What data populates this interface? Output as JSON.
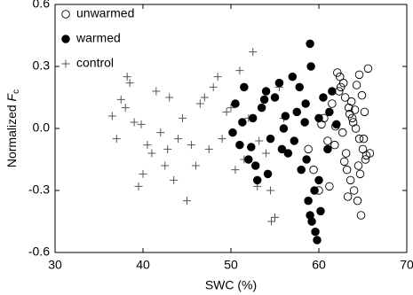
{
  "chart_data": {
    "type": "scatter",
    "xlabel": "SWC (%)",
    "ylabel": [
      "Normalized ",
      "F",
      "c"
    ],
    "xlim": [
      30,
      70
    ],
    "xticks": [
      30,
      40,
      50,
      60,
      70
    ],
    "ylim": [
      -0.6,
      0.6
    ],
    "yticks": [
      -0.6,
      -0.3,
      {
        "value": 0,
        "label": "0.0"
      },
      0.3,
      0.6
    ],
    "legend": "top-left",
    "series": [
      {
        "name": "unwarmed",
        "marker": "open-circle",
        "color": "#000000",
        "x": [
          62.1,
          62.5,
          63,
          63.4,
          63.8,
          64.2,
          64.6,
          65,
          65.3,
          65.6,
          62.8,
          63.2,
          63.6,
          64,
          64.4,
          64.8,
          65.2,
          61.5,
          61.8,
          62.3,
          63.1,
          63.9,
          64.5,
          64.9,
          63.5,
          62.7,
          61.2,
          60.6,
          60,
          59.4,
          65.1,
          64.3,
          63.3,
          62.4,
          61.9,
          64.7,
          65.4,
          63.7,
          62.9,
          64.1,
          58.8,
          60.3,
          61,
          65.8,
          64.6
        ],
        "values": [
          0.27,
          0.2,
          0.15,
          0.1,
          0.05,
          0,
          -0.05,
          -0.1,
          -0.15,
          0.29,
          0.22,
          -0.2,
          -0.25,
          -0.3,
          -0.35,
          -0.42,
          0.08,
          0.12,
          -0.08,
          0.18,
          -0.12,
          0.03,
          -0.18,
          0.16,
          0.07,
          -0.02,
          -0.28,
          0.05,
          -0.3,
          -0.2,
          -0.05,
          0.21,
          -0.33,
          0.25,
          0.01,
          -0.22,
          -0.13,
          0.13,
          -0.16,
          0.09,
          -0.1,
          0.02,
          -0.06,
          -0.12,
          0.26
        ]
      },
      {
        "name": "warmed",
        "marker": "filled-circle",
        "color": "#000000",
        "x": [
          50.5,
          51,
          51.5,
          52,
          52.5,
          53,
          53.5,
          54,
          54.5,
          55,
          55.5,
          56,
          56.5,
          57,
          57.5,
          58,
          58.5,
          59,
          59.5,
          60,
          60.5,
          61,
          61.5,
          62,
          50.2,
          51.3,
          52.8,
          54.2,
          56.2,
          57.8,
          58.8,
          59,
          59.2,
          59.6,
          59.8,
          60.2,
          58.4,
          57.2,
          55.8,
          53.8,
          52.3,
          59.1,
          60,
          58.6,
          61.2
        ],
        "values": [
          0.12,
          -0.08,
          0.2,
          -0.15,
          0.05,
          -0.25,
          0.1,
          0.18,
          -0.05,
          0.15,
          0.22,
          0,
          -0.12,
          0.25,
          0.08,
          -0.2,
          0.12,
          0.41,
          -0.3,
          0.05,
          0.15,
          -0.1,
          0.18,
          0.02,
          -0.02,
          0.03,
          -0.18,
          -0.22,
          0.06,
          0.2,
          -0.35,
          -0.42,
          -0.45,
          -0.5,
          -0.54,
          -0.4,
          0.03,
          -0.06,
          -0.1,
          0.14,
          -0.09,
          0.3,
          -0.25,
          -0.15,
          0.08
        ]
      },
      {
        "name": "control",
        "marker": "plus",
        "color": "#555555",
        "x": [
          36.5,
          37,
          37.5,
          38,
          38.5,
          39,
          39.5,
          40,
          40.5,
          41,
          41.5,
          42,
          42.5,
          43,
          43.5,
          44,
          44.5,
          45,
          45.5,
          46,
          46.5,
          47,
          47.5,
          48,
          48.5,
          49,
          49.5,
          50,
          50.5,
          51,
          51.5,
          52,
          52.5,
          53,
          53.5,
          54,
          54.5,
          55,
          55.5,
          56,
          38.2,
          39.8,
          42.8,
          53.2,
          54.6
        ],
        "values": [
          0.06,
          -0.05,
          0.14,
          0.1,
          0.22,
          0.03,
          -0.28,
          -0.22,
          -0.08,
          -0.12,
          0.18,
          -0.02,
          -0.18,
          0.15,
          -0.25,
          -0.05,
          0.05,
          -0.35,
          -0.08,
          -0.18,
          0.12,
          0.15,
          -0.1,
          0.2,
          0.25,
          -0.05,
          0.08,
          0.1,
          -0.2,
          0.28,
          -0.15,
          0.05,
          0.37,
          -0.28,
          0.1,
          -0.12,
          -0.3,
          -0.43,
          0.2,
          0.05,
          0.25,
          0.02,
          -0.1,
          -0.06,
          -0.45
        ]
      }
    ]
  }
}
